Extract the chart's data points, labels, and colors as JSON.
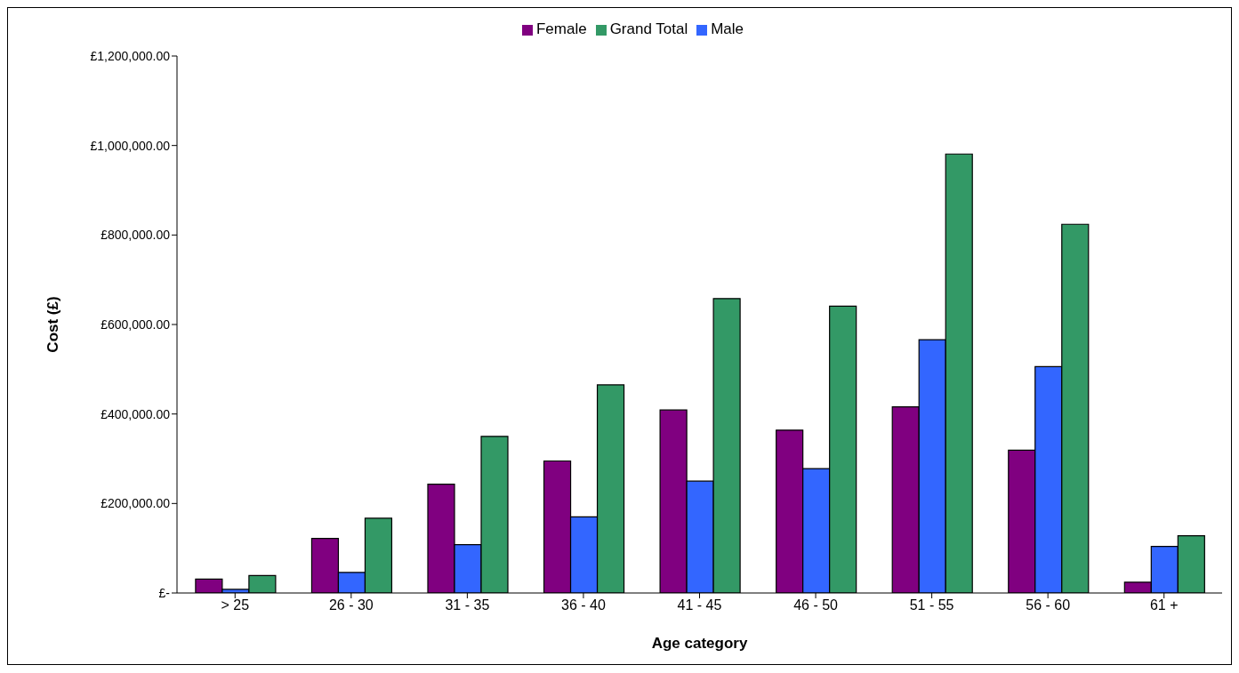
{
  "chart_data": {
    "type": "bar",
    "xlabel": "Age category",
    "ylabel": "Cost (£)",
    "categories": [
      "> 25",
      "26 - 30",
      "31 - 35",
      "36 - 40",
      "41 - 45",
      "46 - 50",
      "51 - 55",
      "56 - 60",
      "61 +"
    ],
    "series": [
      {
        "name": "Female",
        "color": "#800080",
        "values": [
          31000,
          122000,
          243000,
          295000,
          409000,
          364000,
          416000,
          319000,
          24000
        ]
      },
      {
        "name": "Male",
        "color": "#3366ff",
        "values": [
          8000,
          46000,
          108000,
          170000,
          250000,
          278000,
          566000,
          506000,
          104000
        ]
      },
      {
        "name": "Grand Total",
        "color": "#339966",
        "values": [
          39000,
          167000,
          350000,
          465000,
          658000,
          641000,
          981000,
          824000,
          128000
        ]
      }
    ],
    "ylim": [
      0,
      1200000
    ],
    "yticks": [
      {
        "value": 0,
        "label": "£-"
      },
      {
        "value": 200000,
        "label": "£200,000.00"
      },
      {
        "value": 400000,
        "label": "£400,000.00"
      },
      {
        "value": 600000,
        "label": "£600,000.00"
      },
      {
        "value": 800000,
        "label": "£800,000.00"
      },
      {
        "value": 1000000,
        "label": "£1,000,000.00"
      },
      {
        "value": 1200000,
        "label": "£1,200,000.00"
      }
    ],
    "grid": false,
    "legend": "top"
  }
}
